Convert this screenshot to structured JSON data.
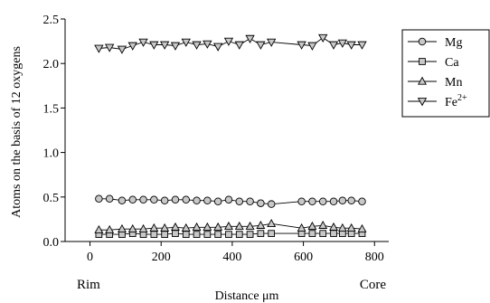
{
  "chart_data": {
    "type": "line",
    "xlabel": "Distance μm",
    "ylabel": "Atoms on the basis of 12 oxygens",
    "xlim": [
      -70,
      840
    ],
    "ylim": [
      0,
      2.5
    ],
    "xticks": [
      "0",
      "200",
      "400",
      "600",
      "800"
    ],
    "yticks": [
      "0.0",
      "0.5",
      "1.0",
      "1.5",
      "2.0",
      "2.5"
    ],
    "x_end_labels": {
      "left": "Rim",
      "right": "Core"
    },
    "legend_position": "right-top",
    "x": [
      25,
      55,
      90,
      120,
      150,
      180,
      210,
      240,
      270,
      300,
      330,
      360,
      390,
      420,
      450,
      480,
      510,
      595,
      625,
      655,
      685,
      710,
      735,
      765
    ],
    "series": [
      {
        "name": "Mg",
        "marker": "circle",
        "values": [
          0.48,
          0.48,
          0.46,
          0.47,
          0.47,
          0.47,
          0.46,
          0.47,
          0.47,
          0.46,
          0.46,
          0.45,
          0.47,
          0.45,
          0.45,
          0.43,
          0.42,
          0.45,
          0.45,
          0.45,
          0.45,
          0.46,
          0.46,
          0.45
        ]
      },
      {
        "name": "Ca",
        "marker": "square",
        "values": [
          0.08,
          0.08,
          0.08,
          0.09,
          0.08,
          0.08,
          0.08,
          0.09,
          0.08,
          0.08,
          0.08,
          0.08,
          0.08,
          0.08,
          0.08,
          0.09,
          0.09,
          0.09,
          0.09,
          0.09,
          0.09,
          0.09,
          0.09,
          0.09
        ]
      },
      {
        "name": "Mn",
        "marker": "triangle-up",
        "values": [
          0.13,
          0.13,
          0.14,
          0.14,
          0.14,
          0.15,
          0.15,
          0.16,
          0.15,
          0.16,
          0.16,
          0.16,
          0.17,
          0.17,
          0.17,
          0.18,
          0.2,
          0.15,
          0.17,
          0.18,
          0.16,
          0.15,
          0.15,
          0.14
        ]
      },
      {
        "name": "Fe",
        "name_sup": "2+",
        "marker": "triangle-down",
        "values": [
          2.17,
          2.18,
          2.16,
          2.2,
          2.24,
          2.21,
          2.21,
          2.2,
          2.24,
          2.21,
          2.22,
          2.19,
          2.25,
          2.21,
          2.28,
          2.21,
          2.24,
          2.21,
          2.2,
          2.29,
          2.21,
          2.23,
          2.21,
          2.21
        ]
      }
    ]
  }
}
